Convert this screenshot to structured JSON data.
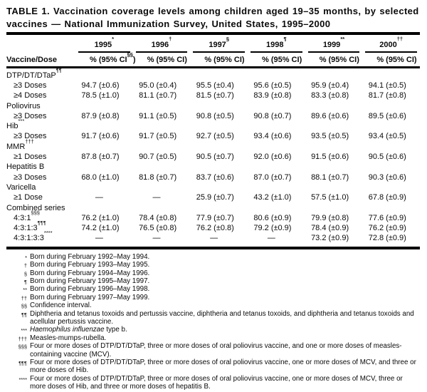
{
  "title": "TABLE 1. Vaccination coverage levels among children aged 19–35 months, by selected vaccines — National Immunization Survey, United States, 1995–2000",
  "table": {
    "row_header_label": "Vaccine/Dose",
    "columns": [
      {
        "year": "1995",
        "marker": "*",
        "pct_label": "%",
        "ci_label": "(95% CI",
        "ci_marker": "§§",
        "ci_close": ")"
      },
      {
        "year": "1996",
        "marker": "†",
        "pct_label": "%",
        "ci_label": "(95% CI",
        "ci_marker": "",
        "ci_close": ")"
      },
      {
        "year": "1997",
        "marker": "§",
        "pct_label": "%",
        "ci_label": "(95% CI",
        "ci_marker": "",
        "ci_close": ")"
      },
      {
        "year": "1998",
        "marker": "¶",
        "pct_label": "%",
        "ci_label": "(95% CI",
        "ci_marker": "",
        "ci_close": ")"
      },
      {
        "year": "1999",
        "marker": "**",
        "pct_label": "%",
        "ci_label": "(95% CI",
        "ci_marker": "",
        "ci_close": ")"
      },
      {
        "year": "2000",
        "marker": "††",
        "pct_label": "%",
        "ci_label": "(95% CI",
        "ci_marker": "",
        "ci_close": ")"
      }
    ],
    "rows": [
      {
        "type": "group",
        "label": "DTP/DT/DTaP",
        "marker": "¶¶"
      },
      {
        "type": "data",
        "label": "≥3 Doses",
        "marker": "",
        "values": [
          {
            "pct": "94.7",
            "ci": "(±0.6)"
          },
          {
            "pct": "95.0",
            "ci": "(±0.4)"
          },
          {
            "pct": "95.5",
            "ci": "(±0.4)"
          },
          {
            "pct": "95.6",
            "ci": "(±0.5)"
          },
          {
            "pct": "95.9",
            "ci": "(±0.4)"
          },
          {
            "pct": "94.1",
            "ci": "(±0.5)"
          }
        ]
      },
      {
        "type": "data",
        "label": "≥4 Doses",
        "marker": "",
        "values": [
          {
            "pct": "78.5",
            "ci": "(±1.0)"
          },
          {
            "pct": "81.1",
            "ci": "(±0.7)"
          },
          {
            "pct": "81.5",
            "ci": "(±0.7)"
          },
          {
            "pct": "83.9",
            "ci": "(±0.8)"
          },
          {
            "pct": "83.3",
            "ci": "(±0.8)"
          },
          {
            "pct": "81.7",
            "ci": "(±0.8)"
          }
        ]
      },
      {
        "type": "group",
        "label": "Poliovirus",
        "marker": ""
      },
      {
        "type": "data",
        "label": "≥3 Doses",
        "marker": "",
        "values": [
          {
            "pct": "87.9",
            "ci": "(±0.8)"
          },
          {
            "pct": "91.1",
            "ci": "(±0.5)"
          },
          {
            "pct": "90.8",
            "ci": "(±0.5)"
          },
          {
            "pct": "90.8",
            "ci": "(±0.7)"
          },
          {
            "pct": "89.6",
            "ci": "(±0.6)"
          },
          {
            "pct": "89.5",
            "ci": "(±0.6)"
          }
        ]
      },
      {
        "type": "group",
        "label": "Hib",
        "marker": "***"
      },
      {
        "type": "data",
        "label": "≥3 Doses",
        "marker": "",
        "values": [
          {
            "pct": "91.7",
            "ci": "(±0.6)"
          },
          {
            "pct": "91.7",
            "ci": "(±0.5)"
          },
          {
            "pct": "92.7",
            "ci": "(±0.5)"
          },
          {
            "pct": "93.4",
            "ci": "(±0.6)"
          },
          {
            "pct": "93.5",
            "ci": "(±0.5)"
          },
          {
            "pct": "93.4",
            "ci": "(±0.5)"
          }
        ]
      },
      {
        "type": "group",
        "label": "MMR",
        "marker": "†††"
      },
      {
        "type": "data",
        "label": "≥1 Doses",
        "marker": "",
        "values": [
          {
            "pct": "87.8",
            "ci": "(±0.7)"
          },
          {
            "pct": "90.7",
            "ci": "(±0.5)"
          },
          {
            "pct": "90.5",
            "ci": "(±0.7)"
          },
          {
            "pct": "92.0",
            "ci": "(±0.6)"
          },
          {
            "pct": "91.5",
            "ci": "(±0.6)"
          },
          {
            "pct": "90.5",
            "ci": "(±0.6)"
          }
        ]
      },
      {
        "type": "group",
        "label": "Hepatitis B",
        "marker": ""
      },
      {
        "type": "data",
        "label": "≥3 Doses",
        "marker": "",
        "values": [
          {
            "pct": "68.0",
            "ci": "(±1.0)"
          },
          {
            "pct": "81.8",
            "ci": "(±0.7)"
          },
          {
            "pct": "83.7",
            "ci": "(±0.6)"
          },
          {
            "pct": "87.0",
            "ci": "(±0.7)"
          },
          {
            "pct": "88.1",
            "ci": "(±0.7)"
          },
          {
            "pct": "90.3",
            "ci": "(±0.6)"
          }
        ]
      },
      {
        "type": "group",
        "label": "Varicella",
        "marker": ""
      },
      {
        "type": "data",
        "label": "≥1 Dose",
        "marker": "",
        "values": [
          {
            "pct": "—",
            "ci": ""
          },
          {
            "pct": "—",
            "ci": ""
          },
          {
            "pct": "25.9",
            "ci": "(±0.7)"
          },
          {
            "pct": "43.2",
            "ci": "(±1.0)"
          },
          {
            "pct": "57.5",
            "ci": "(±1.0)"
          },
          {
            "pct": "67.8",
            "ci": "(±0.9)"
          }
        ]
      },
      {
        "type": "group",
        "label": "Combined series",
        "marker": ""
      },
      {
        "type": "data",
        "label": "4:3:1",
        "marker": "§§§",
        "values": [
          {
            "pct": "76.2",
            "ci": "(±1.0)"
          },
          {
            "pct": "78.4",
            "ci": "(±0.8)"
          },
          {
            "pct": "77.9",
            "ci": "(±0.7)"
          },
          {
            "pct": "80.6",
            "ci": "(±0.9)"
          },
          {
            "pct": "79.9",
            "ci": "(±0.8)"
          },
          {
            "pct": "77.6",
            "ci": "(±0.9)"
          }
        ]
      },
      {
        "type": "data",
        "label": "4:3:1:3",
        "marker": "¶¶¶",
        "values": [
          {
            "pct": "74.2",
            "ci": "(±1.0)"
          },
          {
            "pct": "76.5",
            "ci": "(±0.8)"
          },
          {
            "pct": "76.2",
            "ci": "(±0.8)"
          },
          {
            "pct": "79.2",
            "ci": "(±0.9)"
          },
          {
            "pct": "78.4",
            "ci": "(±0.9)"
          },
          {
            "pct": "76.2",
            "ci": "(±0.9)"
          }
        ]
      },
      {
        "type": "data",
        "label": "4:3:1:3:3",
        "marker": "****",
        "values": [
          {
            "pct": "—",
            "ci": ""
          },
          {
            "pct": "—",
            "ci": ""
          },
          {
            "pct": "—",
            "ci": ""
          },
          {
            "pct": "—",
            "ci": ""
          },
          {
            "pct": "73.2",
            "ci": "(±0.9)"
          },
          {
            "pct": "72.8",
            "ci": "(±0.9)"
          }
        ]
      }
    ]
  },
  "footnotes": [
    {
      "marker": "*",
      "text": "Born during February 1992–May 1994."
    },
    {
      "marker": "†",
      "text": "Born during February 1993–May 1995."
    },
    {
      "marker": "§",
      "text": "Born during February 1994–May 1996."
    },
    {
      "marker": "¶",
      "text": "Born during February 1995–May 1997."
    },
    {
      "marker": "**",
      "text": "Born during February 1996–May 1998."
    },
    {
      "marker": "††",
      "text": "Born during February 1997–May 1999."
    },
    {
      "marker": "§§",
      "text": "Confidence interval."
    },
    {
      "marker": "¶¶",
      "text": "Diphtheria and tetanus toxoids and pertussis vaccine, diphtheria and tetanus toxoids, and diphtheria and tetanus toxoids and acellular pertussis vaccine."
    },
    {
      "marker": "***",
      "italic": "Haemophilus influenzae",
      "text": " type b."
    },
    {
      "marker": "†††",
      "text": "Measles-mumps-rubella."
    },
    {
      "marker": "§§§",
      "text": "Four or more doses of DTP/DT/DTaP, three or more doses of oral poliovirus vaccine, and one or more doses of measles-containing vaccine (MCV)."
    },
    {
      "marker": "¶¶¶",
      "text": "Four or more doses of DTP/DT/DTaP, three or more doses of oral poliovirus vaccine, one or more doses of MCV, and three or more doses of Hib."
    },
    {
      "marker": "****",
      "text": "Four or more doses of DTP/DT/DTaP, three or more doses of oral poliovirus vaccine, one or more doses of MCV, three or more doses of Hib, and three or more doses of hepatitis B."
    }
  ]
}
